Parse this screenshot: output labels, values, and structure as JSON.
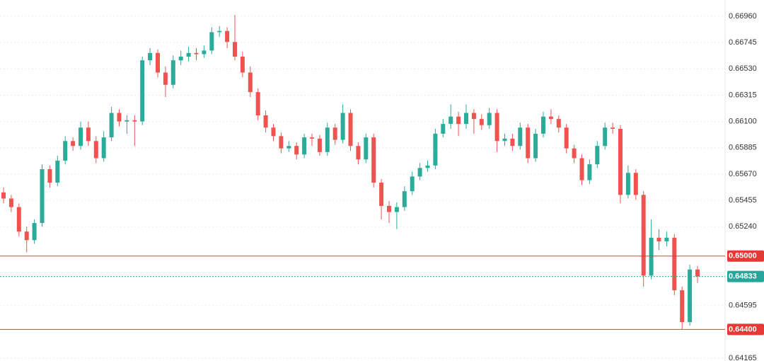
{
  "chart_data": {
    "type": "candlestick",
    "up_color": "#2bab9a",
    "down_color": "#ef5350",
    "ylim": [
      0.64142,
      0.67093
    ],
    "yticks": [
      {
        "value": 0.6696,
        "label": "0.66960"
      },
      {
        "value": 0.66745,
        "label": "0.66745"
      },
      {
        "value": 0.6653,
        "label": "0.66530"
      },
      {
        "value": 0.66315,
        "label": "0.66315"
      },
      {
        "value": 0.661,
        "label": "0.66100"
      },
      {
        "value": 0.65885,
        "label": "0.65885"
      },
      {
        "value": 0.6567,
        "label": "0.65670"
      },
      {
        "value": 0.65455,
        "label": "0.65455"
      },
      {
        "value": 0.6524,
        "label": "0.65240"
      },
      {
        "value": 0.64595,
        "label": "0.64595"
      },
      {
        "value": 0.64165,
        "label": "0.64165"
      }
    ],
    "grid": true,
    "price_lines": [
      {
        "value": 0.65,
        "label": "0.65000",
        "color": "#e53935",
        "style": "solid"
      },
      {
        "value": 0.64833,
        "label": "0.64833",
        "color": "#26a69a",
        "style": "dotted"
      },
      {
        "value": 0.644,
        "label": "0.64400",
        "color": "#e53935",
        "style": "solid"
      }
    ],
    "open": [
      0.6552,
      0.6547,
      0.654,
      0.652,
      0.6513,
      0.6527,
      0.6571,
      0.656,
      0.6578,
      0.6594,
      0.659,
      0.6605,
      0.6594,
      0.658,
      0.6597,
      0.6617,
      0.661,
      0.6611,
      0.661,
      0.666,
      0.6666,
      0.665,
      0.664,
      0.666,
      0.6663,
      0.6666,
      0.6665,
      0.6668,
      0.6683,
      0.6684,
      0.6675,
      0.6663,
      0.665,
      0.6634,
      0.6615,
      0.6605,
      0.6598,
      0.6588,
      0.659,
      0.6583,
      0.6597,
      0.6596,
      0.6585,
      0.6605,
      0.6595,
      0.6617,
      0.659,
      0.6579,
      0.6597,
      0.656,
      0.6541,
      0.6536,
      0.654,
      0.6553,
      0.6565,
      0.6572,
      0.6574,
      0.66,
      0.6608,
      0.6614,
      0.6608,
      0.6617,
      0.6612,
      0.6607,
      0.6617,
      0.6594,
      0.6596,
      0.659,
      0.6605,
      0.658,
      0.66,
      0.6614,
      0.6612,
      0.6605,
      0.6588,
      0.658,
      0.6562,
      0.6575,
      0.659,
      0.6605,
      0.6604,
      0.655,
      0.6568,
      0.655,
      0.6484,
      0.6515,
      0.6512,
      0.6515,
      0.6472,
      0.6446,
      0.6489
    ],
    "high": [
      0.6556,
      0.655,
      0.6543,
      0.6524,
      0.653,
      0.6575,
      0.6574,
      0.6582,
      0.6598,
      0.6597,
      0.661,
      0.661,
      0.6598,
      0.6602,
      0.6622,
      0.662,
      0.6615,
      0.6615,
      0.6663,
      0.667,
      0.6669,
      0.6655,
      0.6664,
      0.6668,
      0.6671,
      0.667,
      0.6672,
      0.6687,
      0.6688,
      0.6687,
      0.6697,
      0.6667,
      0.6655,
      0.6637,
      0.6619,
      0.6608,
      0.6601,
      0.6594,
      0.6593,
      0.66,
      0.66,
      0.6599,
      0.6609,
      0.6608,
      0.6624,
      0.662,
      0.6593,
      0.66,
      0.66,
      0.6563,
      0.6545,
      0.6544,
      0.6557,
      0.6569,
      0.6576,
      0.6578,
      0.6604,
      0.6612,
      0.6624,
      0.6618,
      0.6624,
      0.662,
      0.6616,
      0.6621,
      0.662,
      0.66,
      0.66,
      0.6609,
      0.6608,
      0.6604,
      0.6618,
      0.662,
      0.6615,
      0.6608,
      0.6591,
      0.6583,
      0.6579,
      0.6594,
      0.6609,
      0.6609,
      0.6607,
      0.6574,
      0.6571,
      0.6553,
      0.653,
      0.6522,
      0.652,
      0.6518,
      0.6475,
      0.6493,
      0.6492
    ],
    "low": [
      0.6543,
      0.6536,
      0.6516,
      0.6503,
      0.651,
      0.6524,
      0.6556,
      0.6557,
      0.6575,
      0.6586,
      0.6587,
      0.659,
      0.6576,
      0.6577,
      0.6594,
      0.6606,
      0.66,
      0.659,
      0.6607,
      0.6656,
      0.6646,
      0.663,
      0.6637,
      0.6656,
      0.6659,
      0.666,
      0.6662,
      0.6665,
      0.6679,
      0.667,
      0.666,
      0.6646,
      0.663,
      0.6611,
      0.6601,
      0.6594,
      0.6584,
      0.6585,
      0.6579,
      0.658,
      0.659,
      0.6582,
      0.6582,
      0.6591,
      0.6592,
      0.6586,
      0.6575,
      0.6576,
      0.6556,
      0.653,
      0.6527,
      0.6522,
      0.6537,
      0.655,
      0.6562,
      0.6569,
      0.6571,
      0.6597,
      0.6604,
      0.6598,
      0.6604,
      0.66,
      0.6603,
      0.6604,
      0.6585,
      0.659,
      0.6586,
      0.6587,
      0.6576,
      0.6577,
      0.6597,
      0.6608,
      0.6601,
      0.6584,
      0.6576,
      0.6558,
      0.6559,
      0.6572,
      0.6587,
      0.66,
      0.6543,
      0.6547,
      0.6546,
      0.6475,
      0.6481,
      0.6505,
      0.6508,
      0.6468,
      0.644,
      0.6443,
      0.6478
    ],
    "close": [
      0.6547,
      0.654,
      0.652,
      0.6513,
      0.6527,
      0.6571,
      0.656,
      0.6578,
      0.6594,
      0.659,
      0.6605,
      0.6594,
      0.658,
      0.6597,
      0.6617,
      0.661,
      0.6611,
      0.661,
      0.666,
      0.6666,
      0.665,
      0.664,
      0.666,
      0.6663,
      0.6666,
      0.6665,
      0.6668,
      0.6683,
      0.6684,
      0.6675,
      0.6663,
      0.665,
      0.6634,
      0.6615,
      0.6605,
      0.6598,
      0.6588,
      0.659,
      0.6583,
      0.6597,
      0.6596,
      0.6585,
      0.6605,
      0.6595,
      0.6617,
      0.659,
      0.6579,
      0.6597,
      0.656,
      0.6541,
      0.6536,
      0.654,
      0.6553,
      0.6565,
      0.6572,
      0.6574,
      0.66,
      0.6608,
      0.6614,
      0.6608,
      0.6617,
      0.6612,
      0.6607,
      0.6617,
      0.6594,
      0.6596,
      0.659,
      0.6605,
      0.658,
      0.66,
      0.6614,
      0.6612,
      0.6605,
      0.6588,
      0.658,
      0.6562,
      0.6575,
      0.659,
      0.6605,
      0.6604,
      0.655,
      0.6568,
      0.655,
      0.6484,
      0.6515,
      0.6512,
      0.6515,
      0.6472,
      0.6446,
      0.6489,
      0.64833
    ]
  }
}
